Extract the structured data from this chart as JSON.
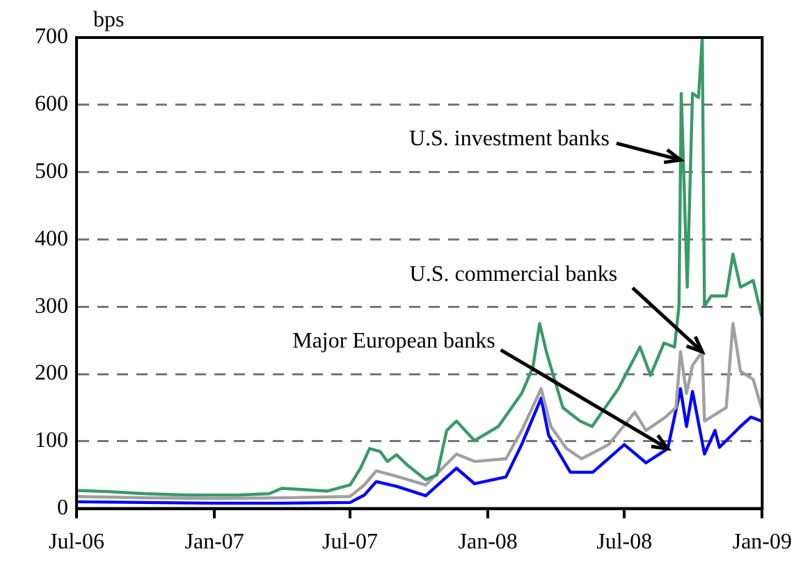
{
  "chart_data": {
    "type": "line",
    "ylabel": "bps",
    "xlim": [
      "2006-07",
      "2009-01"
    ],
    "xticks": [
      {
        "value": "2006-07",
        "label": "Jul-06"
      },
      {
        "value": "2007-01",
        "label": "Jan-07"
      },
      {
        "value": "2007-07",
        "label": "Jul-07"
      },
      {
        "value": "2008-01",
        "label": "Jan-08"
      },
      {
        "value": "2008-07",
        "label": "Jul-08"
      },
      {
        "value": "2009-01",
        "label": "Jan-09"
      }
    ],
    "ylim": [
      0,
      700
    ],
    "yticks": [
      0,
      100,
      200,
      300,
      400,
      500,
      600,
      700
    ],
    "grid": "y",
    "legend": false,
    "marker": "none",
    "line_style": "solid",
    "series": [
      {
        "color": "#3a9a6a",
        "x": [
          "2006-07-01",
          "2006-08-15",
          "2006-10-01",
          "2006-12-01",
          "2007-02-01",
          "2007-03-15",
          "2007-04-01",
          "2007-05-01",
          "2007-06-01",
          "2007-07-01",
          "2007-07-15",
          "2007-07-27",
          "2007-08-10",
          "2007-08-20",
          "2007-09-01",
          "2007-09-15",
          "2007-10-10",
          "2007-10-25",
          "2007-11-07",
          "2007-11-20",
          "2007-12-14",
          "2008-01-15",
          "2008-02-15",
          "2008-03-01",
          "2008-03-10",
          "2008-03-19",
          "2008-04-10",
          "2008-05-03",
          "2008-05-19",
          "2008-06-23",
          "2008-07-22",
          "2008-08-05",
          "2008-08-23",
          "2008-09-06",
          "2008-09-12",
          "2008-09-15",
          "2008-09-23",
          "2008-09-30",
          "2008-10-08",
          "2008-10-13",
          "2008-10-16",
          "2008-10-25",
          "2008-11-14",
          "2008-11-23",
          "2008-12-03",
          "2008-12-20",
          "2008-12-31"
        ],
        "values": [
          27,
          25,
          22,
          20,
          20,
          22,
          30,
          28,
          26,
          35,
          60,
          89,
          85,
          70,
          80,
          65,
          43,
          50,
          116,
          130,
          101,
          122,
          171,
          210,
          275,
          233,
          150,
          130,
          122,
          178,
          240,
          198,
          246,
          240,
          301,
          617,
          329,
          617,
          611,
          700,
          301,
          316,
          316,
          378,
          329,
          339,
          287
        ]
      },
      {
        "color": "#a0a0a0",
        "x": [
          "2006-07-01",
          "2006-10-01",
          "2007-01-01",
          "2007-04-01",
          "2007-07-01",
          "2007-07-20",
          "2007-08-05",
          "2007-09-01",
          "2007-10-10",
          "2007-11-20",
          "2007-12-14",
          "2008-01-25",
          "2008-02-15",
          "2008-03-12",
          "2008-03-25",
          "2008-04-15",
          "2008-05-05",
          "2008-06-10",
          "2008-07-15",
          "2008-07-30",
          "2008-08-25",
          "2008-09-08",
          "2008-09-14",
          "2008-09-22",
          "2008-09-30",
          "2008-10-13",
          "2008-10-16",
          "2008-11-14",
          "2008-11-23",
          "2008-12-03",
          "2008-12-20",
          "2008-12-31"
        ],
        "values": [
          18,
          16,
          15,
          16,
          18,
          35,
          56,
          48,
          35,
          81,
          70,
          74,
          116,
          178,
          122,
          89,
          74,
          95,
          143,
          116,
          136,
          150,
          233,
          171,
          213,
          233,
          130,
          150,
          275,
          204,
          192,
          150
        ]
      },
      {
        "color": "#0000ff",
        "x": [
          "2006-07-01",
          "2006-10-01",
          "2007-01-01",
          "2007-04-01",
          "2007-07-01",
          "2007-07-20",
          "2007-08-05",
          "2007-09-01",
          "2007-10-10",
          "2007-11-20",
          "2007-12-14",
          "2008-01-25",
          "2008-02-15",
          "2008-03-12",
          "2008-03-22",
          "2008-04-20",
          "2008-05-20",
          "2008-07-01",
          "2008-07-30",
          "2008-08-28",
          "2008-09-14",
          "2008-09-22",
          "2008-09-30",
          "2008-10-16",
          "2008-10-30",
          "2008-11-05",
          "2008-12-03",
          "2008-12-17",
          "2008-12-31"
        ],
        "values": [
          10,
          9,
          8,
          8,
          9,
          20,
          40,
          33,
          19,
          60,
          37,
          47,
          95,
          164,
          109,
          54,
          54,
          95,
          68,
          89,
          178,
          122,
          174,
          81,
          116,
          91,
          122,
          136,
          130
        ]
      }
    ],
    "annotations": [
      {
        "text": "U.S. investment banks",
        "x": "2008-09-14",
        "y": 518
      },
      {
        "text": "U.S. commercial banks",
        "x": "2008-10-13",
        "y": 233
      },
      {
        "text": "Major European banks",
        "x": "2008-08-28",
        "y": 89
      }
    ]
  }
}
